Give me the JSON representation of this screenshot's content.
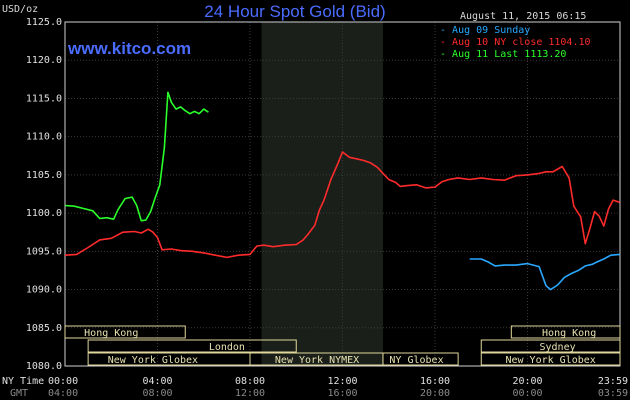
{
  "header": {
    "title": "24 Hour Spot Gold (Bid)",
    "units": "USD/oz",
    "timestamp": "August 11, 2015 06:15",
    "site": "www.kitco.com"
  },
  "legend": [
    {
      "label": "Aug 09 Sunday",
      "color": "#29a8ff"
    },
    {
      "label": "Aug 10 NY close 1104.10",
      "color": "#ff2b2b"
    },
    {
      "label": "Aug 11 Last 1113.20",
      "color": "#2bff2b"
    }
  ],
  "axis_labels": {
    "ny_time": "NY Time",
    "gmt": "GMT"
  },
  "chart_data": {
    "type": "line",
    "title": "24 Hour Spot Gold (Bid)",
    "ylabel": "USD/oz",
    "ylim": [
      1080,
      1125
    ],
    "y_ticks": [
      "1125.0",
      "1120.0",
      "1115.0",
      "1110.0",
      "1105.0",
      "1100.0",
      "1095.0",
      "1090.0",
      "1085.0",
      "1080.0"
    ],
    "xlim": [
      0,
      24
    ],
    "x_ticks_ny": [
      "00:00",
      "04:00",
      "08:00",
      "12:00",
      "16:00",
      "20:00",
      "23:59"
    ],
    "x_ticks_gmt": [
      "04:00",
      "08:00",
      "12:00",
      "16:00",
      "20:00",
      "00:00",
      "03:59"
    ],
    "grid": true,
    "shaded_hours": [
      8.5,
      13.75
    ],
    "series": [
      {
        "name": "Aug 09 Sunday",
        "color": "#29a8ff",
        "points": [
          [
            17.5,
            1094.0
          ],
          [
            18.0,
            1094.0
          ],
          [
            18.3,
            1093.6
          ],
          [
            18.6,
            1093.1
          ],
          [
            19.0,
            1093.2
          ],
          [
            19.5,
            1093.2
          ],
          [
            20.0,
            1093.4
          ],
          [
            20.5,
            1093.0
          ],
          [
            20.8,
            1090.5
          ],
          [
            21.0,
            1090.0
          ],
          [
            21.3,
            1090.6
          ],
          [
            21.6,
            1091.6
          ],
          [
            21.9,
            1092.1
          ],
          [
            22.2,
            1092.5
          ],
          [
            22.5,
            1093.1
          ],
          [
            22.8,
            1093.3
          ],
          [
            23.0,
            1093.6
          ],
          [
            23.3,
            1094.0
          ],
          [
            23.6,
            1094.5
          ],
          [
            23.99,
            1094.6
          ]
        ]
      },
      {
        "name": "Aug 10 NY close 1104.10",
        "color": "#ff2b2b",
        "points": [
          [
            0.0,
            1094.5
          ],
          [
            0.5,
            1094.6
          ],
          [
            1.0,
            1095.5
          ],
          [
            1.5,
            1096.5
          ],
          [
            2.0,
            1096.7
          ],
          [
            2.5,
            1097.5
          ],
          [
            3.0,
            1097.6
          ],
          [
            3.3,
            1097.4
          ],
          [
            3.6,
            1097.9
          ],
          [
            3.8,
            1097.5
          ],
          [
            4.0,
            1096.8
          ],
          [
            4.2,
            1095.2
          ],
          [
            4.6,
            1095.3
          ],
          [
            5.0,
            1095.1
          ],
          [
            5.5,
            1095.0
          ],
          [
            6.0,
            1094.8
          ],
          [
            6.5,
            1094.5
          ],
          [
            7.0,
            1094.2
          ],
          [
            7.5,
            1094.5
          ],
          [
            8.0,
            1094.6
          ],
          [
            8.3,
            1095.7
          ],
          [
            8.6,
            1095.8
          ],
          [
            9.0,
            1095.6
          ],
          [
            9.5,
            1095.8
          ],
          [
            10.0,
            1095.9
          ],
          [
            10.3,
            1096.5
          ],
          [
            10.5,
            1097.2
          ],
          [
            10.8,
            1098.4
          ],
          [
            11.0,
            1100.4
          ],
          [
            11.2,
            1101.7
          ],
          [
            11.5,
            1104.4
          ],
          [
            11.8,
            1106.5
          ],
          [
            12.0,
            1108.0
          ],
          [
            12.3,
            1107.3
          ],
          [
            12.6,
            1107.1
          ],
          [
            12.9,
            1106.9
          ],
          [
            13.2,
            1106.6
          ],
          [
            13.5,
            1106.0
          ],
          [
            13.75,
            1105.2
          ],
          [
            14.0,
            1104.4
          ],
          [
            14.3,
            1104.0
          ],
          [
            14.5,
            1103.5
          ],
          [
            14.8,
            1103.6
          ],
          [
            15.2,
            1103.7
          ],
          [
            15.6,
            1103.3
          ],
          [
            16.0,
            1103.4
          ],
          [
            16.3,
            1104.1
          ],
          [
            16.6,
            1104.4
          ],
          [
            17.0,
            1104.6
          ],
          [
            17.5,
            1104.4
          ],
          [
            18.0,
            1104.6
          ],
          [
            18.5,
            1104.4
          ],
          [
            19.0,
            1104.3
          ],
          [
            19.5,
            1104.9
          ],
          [
            20.0,
            1105.0
          ],
          [
            20.5,
            1105.2
          ],
          [
            20.8,
            1105.4
          ],
          [
            21.1,
            1105.4
          ],
          [
            21.5,
            1106.1
          ],
          [
            21.8,
            1104.6
          ],
          [
            22.0,
            1100.9
          ],
          [
            22.3,
            1099.5
          ],
          [
            22.5,
            1096.0
          ],
          [
            22.7,
            1098.0
          ],
          [
            22.9,
            1100.2
          ],
          [
            23.1,
            1099.6
          ],
          [
            23.3,
            1098.3
          ],
          [
            23.5,
            1100.5
          ],
          [
            23.7,
            1101.7
          ],
          [
            23.99,
            1101.4
          ]
        ]
      },
      {
        "name": "Aug 11 Last 1113.20",
        "color": "#2bff2b",
        "points": [
          [
            0.0,
            1101.0
          ],
          [
            0.4,
            1100.9
          ],
          [
            0.8,
            1100.6
          ],
          [
            1.2,
            1100.3
          ],
          [
            1.5,
            1099.3
          ],
          [
            1.8,
            1099.4
          ],
          [
            2.1,
            1099.2
          ],
          [
            2.3,
            1100.5
          ],
          [
            2.6,
            1101.9
          ],
          [
            2.9,
            1102.1
          ],
          [
            3.1,
            1101.0
          ],
          [
            3.3,
            1099.0
          ],
          [
            3.5,
            1099.1
          ],
          [
            3.7,
            1100.2
          ],
          [
            3.9,
            1102.0
          ],
          [
            4.1,
            1103.7
          ],
          [
            4.3,
            1108.6
          ],
          [
            4.45,
            1115.8
          ],
          [
            4.6,
            1114.5
          ],
          [
            4.8,
            1113.6
          ],
          [
            5.0,
            1113.9
          ],
          [
            5.2,
            1113.4
          ],
          [
            5.4,
            1113.0
          ],
          [
            5.6,
            1113.3
          ],
          [
            5.8,
            1113.0
          ],
          [
            6.0,
            1113.6
          ],
          [
            6.2,
            1113.2
          ]
        ]
      }
    ],
    "session_bars": [
      {
        "label": "Hong Kong",
        "start": 0.0,
        "end": 5.2,
        "row": 1,
        "label_at": 2.0
      },
      {
        "label": "Hong Kong",
        "start": 19.3,
        "end": 24.0,
        "row": 1,
        "label_at": 21.8
      },
      {
        "label": "London",
        "start": 1.0,
        "end": 10.0,
        "row": 2,
        "label_at": 7.0
      },
      {
        "label": "Sydney",
        "start": 18.0,
        "end": 24.0,
        "row": 2,
        "label_at": 21.3
      },
      {
        "label": "New York Globex",
        "start": 1.0,
        "end": 8.0,
        "row": 3,
        "label_at": 3.8
      },
      {
        "label": "New York NYMEX",
        "start": 8.0,
        "end": 13.75,
        "row": 3,
        "label_at": 10.9
      },
      {
        "label": "NY Globex",
        "start": 13.75,
        "end": 17.0,
        "row": 3,
        "label_at": 15.2
      },
      {
        "label": "New York Globex",
        "start": 18.0,
        "end": 24.0,
        "row": 3,
        "label_at": 21.0
      }
    ]
  }
}
